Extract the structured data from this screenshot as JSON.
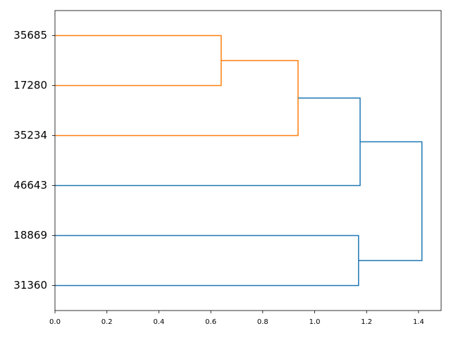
{
  "chart_data": {
    "type": "dendrogram",
    "orientation": "left",
    "categories": [
      "35685",
      "17280",
      "35234",
      "46643",
      "18869",
      "31360"
    ],
    "links": [
      {
        "children": [
          0,
          1
        ],
        "height": 0.64,
        "color": "#ff7f0e"
      },
      {
        "children": [
          6,
          2
        ],
        "height": 0.936,
        "color": "#ff7f0e"
      },
      {
        "children": [
          7,
          3
        ],
        "height": 1.175,
        "color": "#1f77b4"
      },
      {
        "children": [
          4,
          5
        ],
        "height": 1.169,
        "color": "#1f77b4"
      },
      {
        "children": [
          8,
          9
        ],
        "height": 1.413,
        "color": "#1f77b4"
      }
    ],
    "xlim": [
      0,
      1.487
    ],
    "xticks": [
      {
        "value": 0,
        "label": "0.0"
      },
      0.2,
      0.4,
      0.6,
      0.8,
      {
        "value": 1,
        "label": "1.0"
      },
      1.2,
      1.4
    ]
  }
}
